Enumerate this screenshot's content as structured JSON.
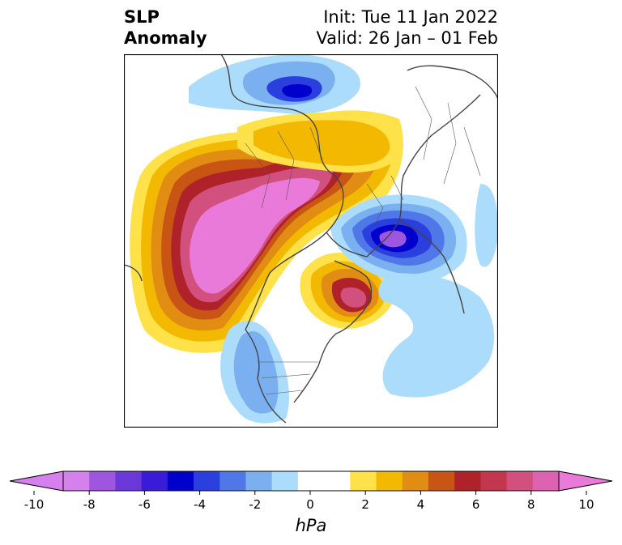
{
  "title": {
    "left_line1": "SLP",
    "left_line2": "Anomaly",
    "right_line1": "Init: Tue 11 Jan 2022",
    "right_line2": "Valid: 26 Jan – 01 Feb"
  },
  "colorbar": {
    "unit_label": "hPa",
    "ticks": [
      "-10",
      "-8",
      "-6",
      "-4",
      "-2",
      "0",
      "2",
      "4",
      "6",
      "8",
      "10"
    ],
    "tick_values": [
      -10,
      -8,
      -6,
      -4,
      -2,
      0,
      2,
      4,
      6,
      8,
      10
    ],
    "colors": [
      "#d580ec",
      "#9e55e0",
      "#6a37d8",
      "#3a1cd8",
      "#0000cc",
      "#2a3fdd",
      "#5077e8",
      "#7ab0f0",
      "#acdcfb",
      "#ffffff",
      "#ffffff",
      "#ffe14a",
      "#f3b800",
      "#e18c12",
      "#c85514",
      "#b0222a",
      "#c2364e",
      "#d1507e",
      "#dd62b0"
    ],
    "extend_low_color": "#d580ec",
    "extend_high_color": "#e97ad9"
  },
  "map_colors": {
    "pos1": "#ffe14a",
    "pos2": "#f3b800",
    "pos3": "#e18c12",
    "pos4": "#c85514",
    "pos5": "#b0222a",
    "pos6": "#c2364e",
    "pos7": "#d1507e",
    "pos8": "#dd62b0",
    "pos9": "#e97ad9",
    "neg1": "#acdcfb",
    "neg2": "#7ab0f0",
    "neg3": "#5077e8",
    "neg4": "#2a3fdd",
    "neg5": "#0000cc",
    "neg6": "#3a1cd8",
    "neg7": "#6a37d8",
    "neg8": "#9e55e0",
    "coast": "#444444"
  }
}
